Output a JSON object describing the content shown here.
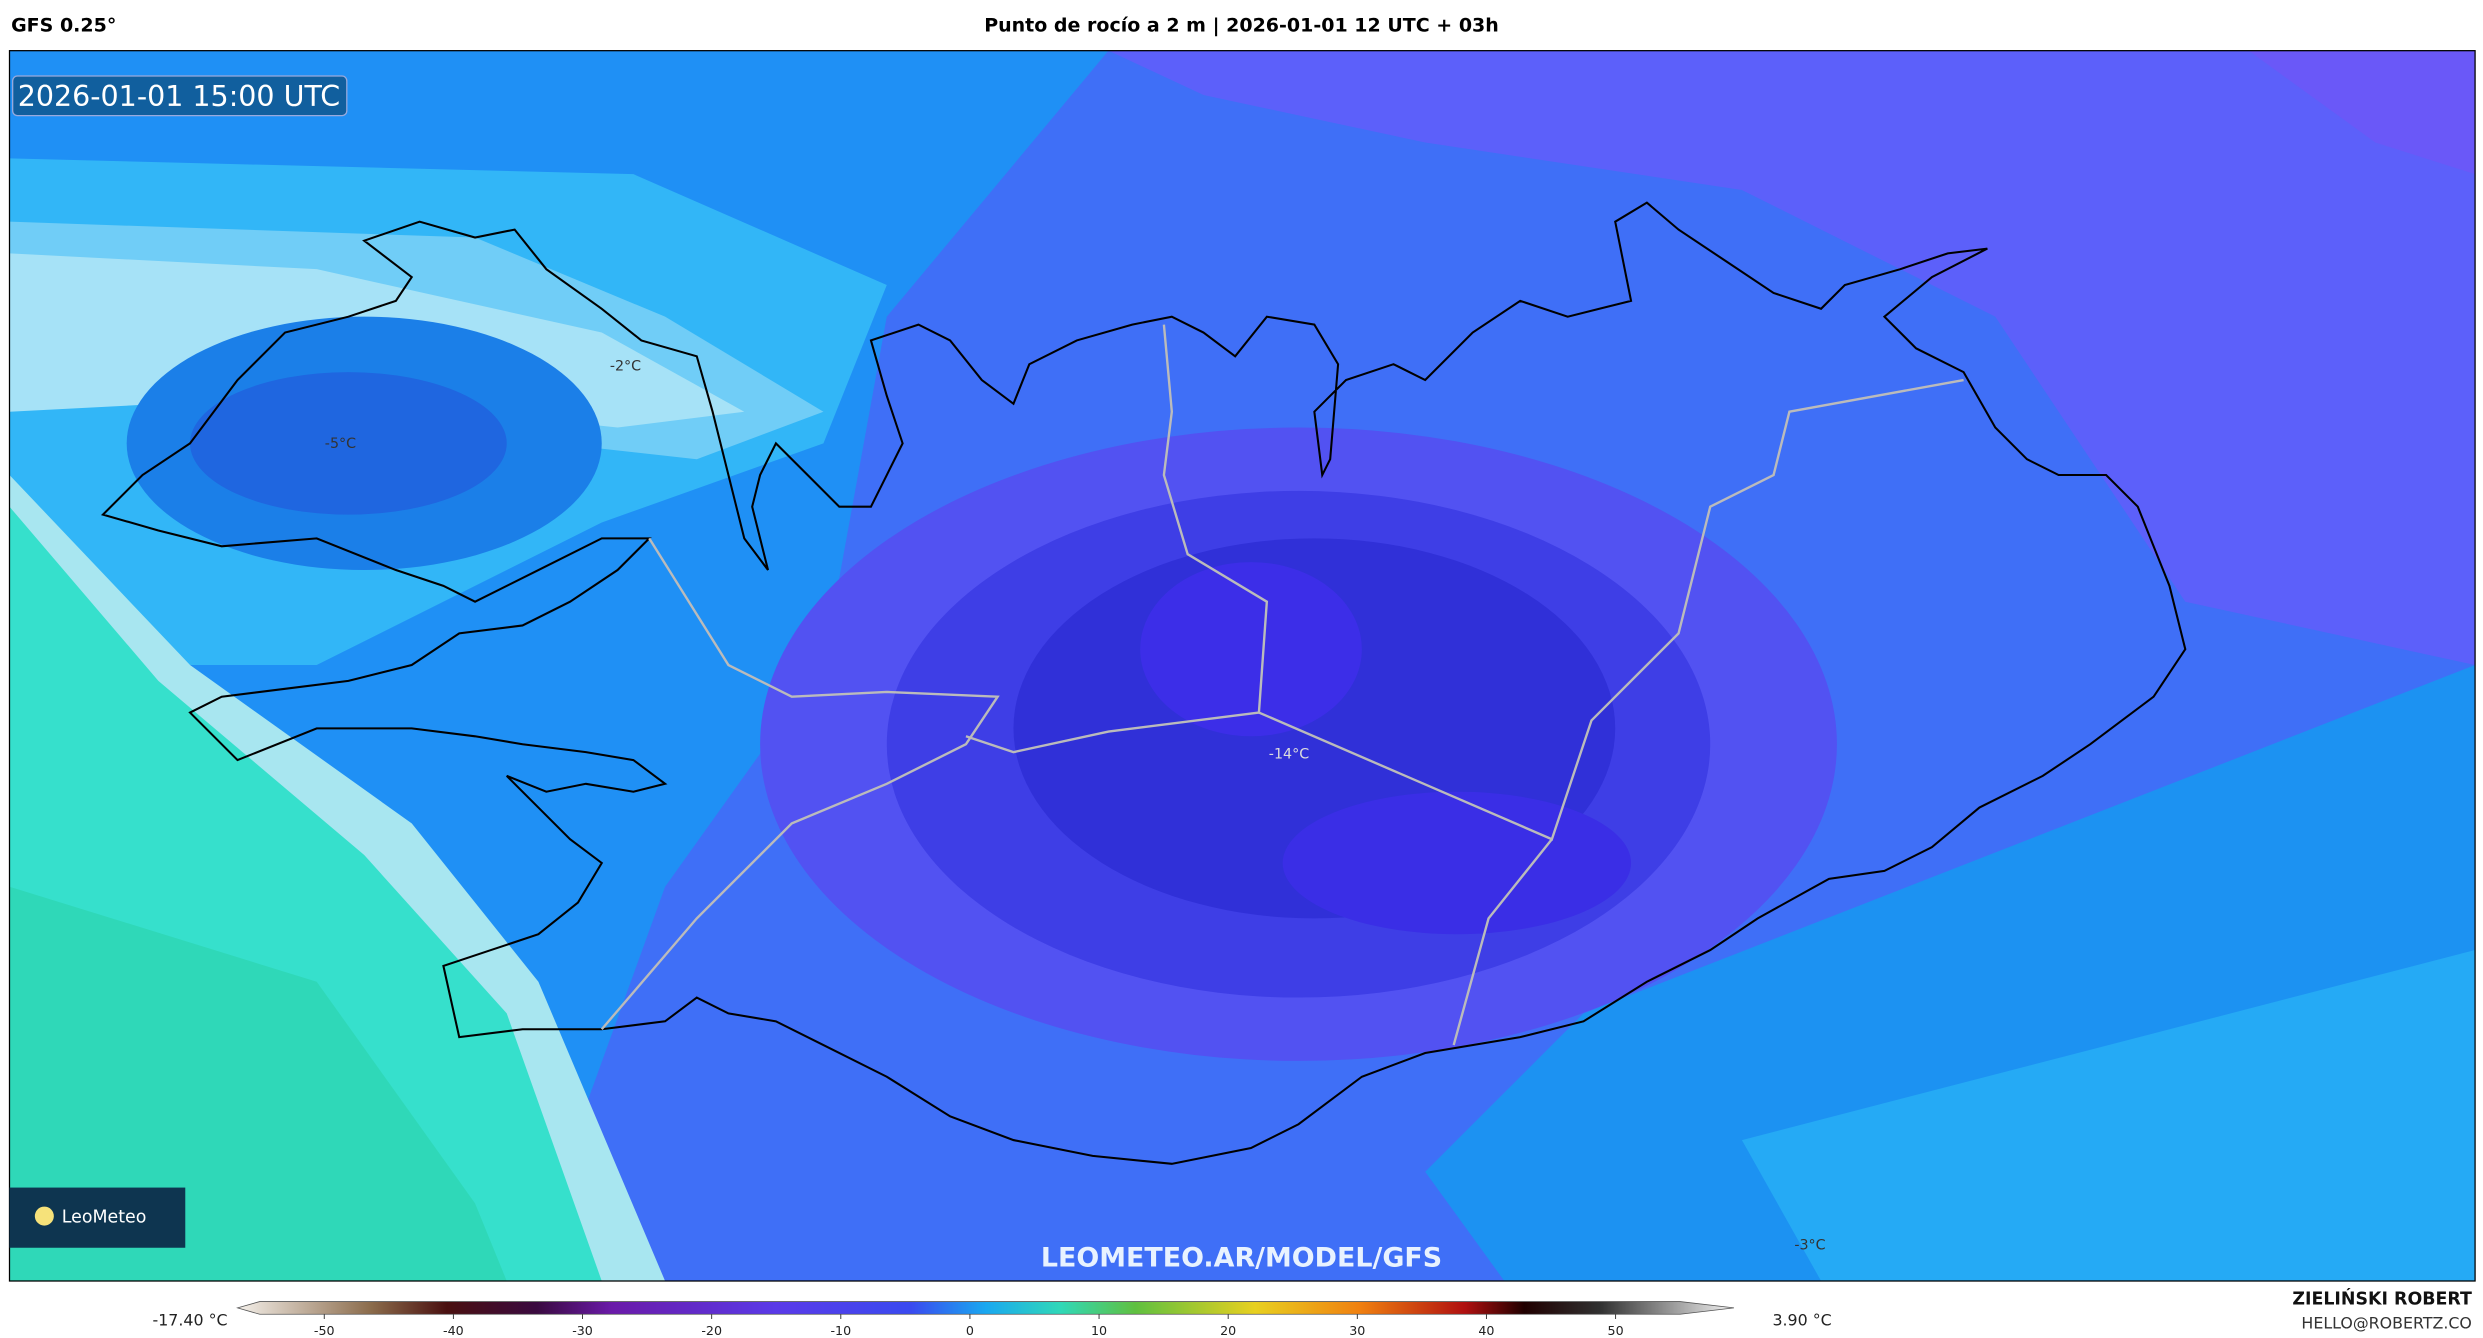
{
  "header": {
    "model": "GFS 0.25°",
    "title": "Punto de rocío a 2 m | 2026-01-01 12 UTC + 03h"
  },
  "map": {
    "valid_time": "2026-01-01 15:00 UTC",
    "contour_labels": [
      "-2°C",
      "-5°C",
      "-14°C",
      "-3°C"
    ],
    "watermark": "LEOMETEO.AR/MODEL/GFS",
    "logo": "LeoMeteo"
  },
  "colorbar": {
    "min_label": "-17.40 °C",
    "max_label": "3.90 °C",
    "lim": [
      -55,
      55
    ],
    "ticks": [
      -50,
      -40,
      -30,
      -20,
      -10,
      0,
      10,
      20,
      30,
      40,
      50
    ]
  },
  "footer": {
    "author": "ZIELIŃSKI ROBERT",
    "email": "HELLO@ROBERTZ.CO"
  }
}
